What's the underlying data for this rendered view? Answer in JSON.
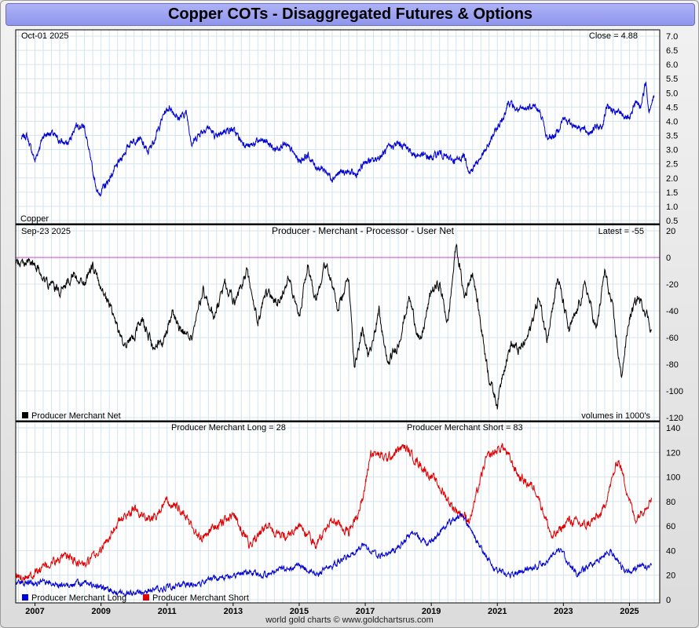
{
  "page": {
    "title": "Copper COTs - Disaggregated Futures & Options",
    "footer": "world gold charts © www.goldchartsrus.com"
  },
  "colors": {
    "price": "#0000d0",
    "net": "#000000",
    "zero_line": "#d040d0",
    "long": "#0000d0",
    "short": "#e00000",
    "grid": "#d4e4ee"
  },
  "chart_data": [
    {
      "type": "line",
      "panel": "price",
      "date_label": "Oct-01  2025",
      "readout": "Close = 4.88",
      "series_label": "Copper",
      "ylim": [
        0.5,
        7.0
      ],
      "yticks": [
        0.5,
        1.0,
        1.5,
        2.0,
        2.5,
        3.0,
        3.5,
        4.0,
        4.5,
        5.0,
        5.5,
        6.0,
        6.5,
        7.0
      ],
      "series": [
        {
          "x": [
            "2006-08",
            "2006-10",
            "2007-01",
            "2007-04",
            "2007-07",
            "2007-10",
            "2008-01",
            "2008-04",
            "2008-07",
            "2008-10",
            "2008-12",
            "2009-03",
            "2009-06",
            "2009-09",
            "2009-12",
            "2010-03",
            "2010-06",
            "2010-09",
            "2010-12",
            "2011-02",
            "2011-05",
            "2011-08",
            "2011-10",
            "2012-01",
            "2012-04",
            "2012-07",
            "2012-10",
            "2013-01",
            "2013-04",
            "2013-07",
            "2013-10",
            "2014-01",
            "2014-04",
            "2014-07",
            "2014-10",
            "2015-01",
            "2015-04",
            "2015-07",
            "2015-10",
            "2016-01",
            "2016-04",
            "2016-07",
            "2016-10",
            "2017-01",
            "2017-04",
            "2017-07",
            "2017-10",
            "2018-01",
            "2018-04",
            "2018-07",
            "2018-10",
            "2019-01",
            "2019-04",
            "2019-07",
            "2019-10",
            "2020-01",
            "2020-03",
            "2020-06",
            "2020-09",
            "2020-12",
            "2021-03",
            "2021-05",
            "2021-08",
            "2021-11",
            "2022-02",
            "2022-05",
            "2022-07",
            "2022-10",
            "2023-01",
            "2023-04",
            "2023-07",
            "2023-10",
            "2024-01",
            "2024-03",
            "2024-05",
            "2024-07",
            "2024-10",
            "2025-01",
            "2025-03",
            "2025-05",
            "2025-07",
            "2025-08",
            "2025-10"
          ],
          "y": [
            3.4,
            3.5,
            2.6,
            3.5,
            3.6,
            3.3,
            3.2,
            3.9,
            3.8,
            2.2,
            1.4,
            1.8,
            2.3,
            2.8,
            3.3,
            3.4,
            2.9,
            3.5,
            4.3,
            4.5,
            4.1,
            4.3,
            3.2,
            3.6,
            3.8,
            3.4,
            3.7,
            3.7,
            3.3,
            3.1,
            3.3,
            3.3,
            3.0,
            3.2,
            3.0,
            2.6,
            2.8,
            2.4,
            2.3,
            2.0,
            2.2,
            2.2,
            2.1,
            2.6,
            2.6,
            2.8,
            3.1,
            3.2,
            3.1,
            2.8,
            2.8,
            2.7,
            2.9,
            2.7,
            2.6,
            2.8,
            2.2,
            2.6,
            3.0,
            3.6,
            4.1,
            4.7,
            4.4,
            4.4,
            4.6,
            4.2,
            3.4,
            3.5,
            4.1,
            3.9,
            3.8,
            3.6,
            3.8,
            3.8,
            4.6,
            4.3,
            4.3,
            4.0,
            4.7,
            4.5,
            5.4,
            4.4,
            4.88
          ]
        }
      ]
    },
    {
      "type": "line",
      "panel": "net",
      "date_label": "Sep-23  2025",
      "title": "Producer - Merchant - Processor - User Net",
      "readout": "Latest = -55",
      "legend": "Producer Merchant Net",
      "note": "volumes in 1000's",
      "ylim": [
        -120,
        20
      ],
      "yticks": [
        20,
        0,
        -20,
        -40,
        -60,
        -80,
        -100,
        -120
      ],
      "series": [
        {
          "x": [
            "2006-06",
            "2006-10",
            "2007-02",
            "2007-06",
            "2007-10",
            "2008-03",
            "2008-07",
            "2008-10",
            "2009-01",
            "2009-05",
            "2009-09",
            "2010-01",
            "2010-04",
            "2010-08",
            "2010-12",
            "2011-03",
            "2011-06",
            "2011-10",
            "2012-02",
            "2012-06",
            "2012-10",
            "2013-02",
            "2013-06",
            "2013-10",
            "2014-01",
            "2014-05",
            "2014-09",
            "2015-01",
            "2015-04",
            "2015-07",
            "2015-11",
            "2016-03",
            "2016-07",
            "2016-09",
            "2016-12",
            "2017-02",
            "2017-06",
            "2017-09",
            "2018-01",
            "2018-05",
            "2018-09",
            "2019-01",
            "2019-04",
            "2019-07",
            "2019-10",
            "2020-01",
            "2020-04",
            "2020-07",
            "2020-10",
            "2021-01",
            "2021-03",
            "2021-06",
            "2021-09",
            "2021-12",
            "2022-04",
            "2022-07",
            "2022-11",
            "2023-03",
            "2023-06",
            "2023-09",
            "2024-01",
            "2024-04",
            "2024-07",
            "2024-10",
            "2025-01",
            "2025-04",
            "2025-07",
            "2025-09"
          ],
          "y": [
            -5,
            -3,
            -8,
            -20,
            -25,
            -12,
            -20,
            -5,
            -25,
            -40,
            -65,
            -60,
            -45,
            -70,
            -60,
            -40,
            -55,
            -60,
            -25,
            -45,
            -20,
            -35,
            -10,
            -50,
            -25,
            -35,
            -15,
            -45,
            -5,
            -30,
            -2,
            -40,
            -15,
            -80,
            -55,
            -75,
            -40,
            -80,
            -65,
            -30,
            -65,
            -25,
            -20,
            -50,
            10,
            -30,
            -10,
            -50,
            -90,
            -110,
            -85,
            -65,
            -70,
            -60,
            -30,
            -60,
            -15,
            -55,
            -40,
            -20,
            -55,
            -10,
            -40,
            -90,
            -45,
            -30,
            -40,
            -55
          ]
        }
      ]
    },
    {
      "type": "line",
      "panel": "positions",
      "long_label": "Producer Merchant Long = 28",
      "short_label": "Producer Merchant Short = 83",
      "ylim": [
        0,
        140
      ],
      "yticks": [
        140,
        120,
        100,
        80,
        60,
        40,
        20,
        0
      ],
      "xlim": [
        "2006-06",
        "2025-12"
      ],
      "xticks": [
        "2007",
        "2009",
        "2011",
        "2013",
        "2015",
        "2017",
        "2019",
        "2021",
        "2023",
        "2025"
      ],
      "series": [
        {
          "name": "Producer Merchant Long",
          "x": [
            "2006-06",
            "2007-01",
            "2007-07",
            "2008-01",
            "2008-07",
            "2009-01",
            "2009-06",
            "2010-01",
            "2010-07",
            "2011-01",
            "2011-07",
            "2012-01",
            "2012-07",
            "2013-01",
            "2013-07",
            "2014-01",
            "2014-07",
            "2015-01",
            "2015-07",
            "2016-01",
            "2016-07",
            "2016-12",
            "2017-06",
            "2017-12",
            "2018-06",
            "2018-12",
            "2019-06",
            "2019-12",
            "2020-06",
            "2020-12",
            "2021-06",
            "2021-12",
            "2022-06",
            "2022-12",
            "2023-06",
            "2023-12",
            "2024-06",
            "2024-12",
            "2025-06",
            "2025-09"
          ],
          "y": [
            15,
            14,
            13,
            12,
            14,
            10,
            6,
            5,
            8,
            10,
            12,
            14,
            18,
            20,
            22,
            20,
            25,
            28,
            20,
            28,
            35,
            45,
            35,
            40,
            55,
            45,
            60,
            70,
            45,
            25,
            20,
            25,
            30,
            40,
            20,
            30,
            40,
            22,
            28,
            28
          ]
        },
        {
          "name": "Producer Merchant Short",
          "x": [
            "2006-06",
            "2007-01",
            "2007-07",
            "2008-01",
            "2008-07",
            "2009-01",
            "2009-06",
            "2010-01",
            "2010-07",
            "2011-01",
            "2011-07",
            "2012-01",
            "2012-07",
            "2013-01",
            "2013-07",
            "2014-01",
            "2014-07",
            "2015-01",
            "2015-07",
            "2016-01",
            "2016-07",
            "2016-12",
            "2017-03",
            "2017-09",
            "2018-03",
            "2018-09",
            "2019-03",
            "2019-09",
            "2020-03",
            "2020-09",
            "2021-03",
            "2021-09",
            "2022-03",
            "2022-09",
            "2023-03",
            "2023-09",
            "2024-03",
            "2024-09",
            "2025-03",
            "2025-09"
          ],
          "y": [
            18,
            22,
            30,
            35,
            28,
            40,
            60,
            75,
            65,
            80,
            70,
            50,
            60,
            70,
            45,
            60,
            50,
            60,
            45,
            65,
            55,
            80,
            120,
            115,
            125,
            110,
            95,
            75,
            65,
            115,
            125,
            100,
            90,
            50,
            65,
            60,
            70,
            115,
            65,
            83
          ]
        }
      ]
    }
  ]
}
